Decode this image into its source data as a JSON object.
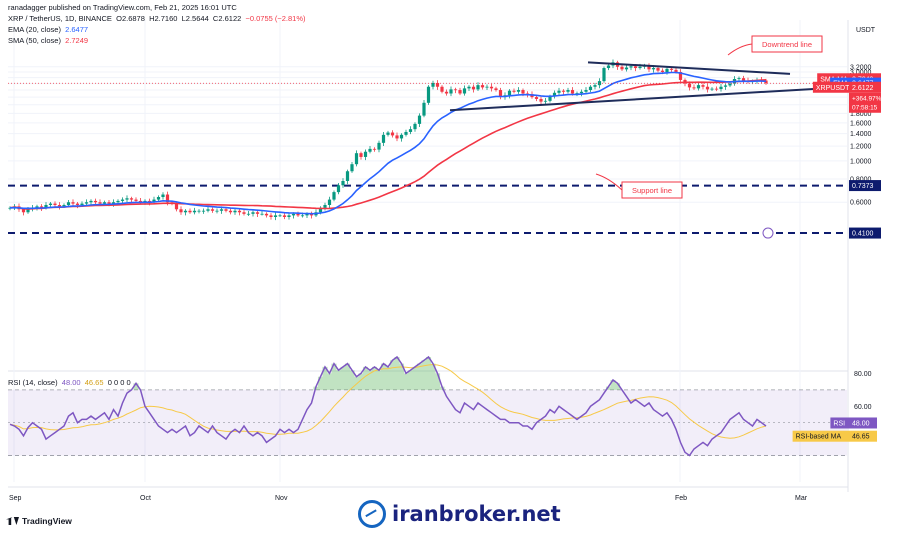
{
  "header": {
    "published_by": "ranadagger published on TradingView.com, Feb 21, 2025 16:01 UTC",
    "symbol_line": "XRP / TetherUS, 1D, BINANCE",
    "ohlc": {
      "o_label": "O",
      "o": "2.6878",
      "h_label": "H",
      "h": "2.7160",
      "l_label": "L",
      "l": "2.5644",
      "c_label": "C",
      "c": "2.6122",
      "change": "−0.0755 (−2.81%)"
    },
    "ema_line": {
      "label": "EMA (20, close)",
      "value": "2.6477"
    },
    "sma_line": {
      "label": "SMA (50, close)",
      "value": "2.7249"
    }
  },
  "footer": {
    "brand": "TradingView",
    "watermark": "iranbroker.net"
  },
  "colors": {
    "up": "#089981",
    "down": "#f23645",
    "ema": "#2962ff",
    "sma": "#f23645",
    "rsi_line": "#7e57c2",
    "rsi_ma": "#f7c948",
    "level_line": "#0d1b6e",
    "trend_line": "#1e2c5a"
  },
  "chart_data": [
    {
      "type": "candlestick",
      "title": "XRP / TetherUS, 1D, BINANCE",
      "currency_label": "USDT",
      "scale": "log",
      "ylim": [
        0.4,
        3.55
      ],
      "y_ticks": [
        "3.2000",
        "3.0000",
        "2.8000",
        "2.6000",
        "2.4000",
        "2.2000",
        "2.0000",
        "1.8000",
        "1.6000",
        "1.4000",
        "1.2000",
        "1.0000",
        "0.8000",
        "0.6000"
      ],
      "x_ticks": [
        "Sep",
        "Oct",
        "Nov",
        "Feb",
        "Mar"
      ],
      "close_approx": [
        0.56,
        0.57,
        0.55,
        0.53,
        0.55,
        0.56,
        0.57,
        0.56,
        0.58,
        0.59,
        0.58,
        0.57,
        0.58,
        0.6,
        0.59,
        0.58,
        0.59,
        0.6,
        0.61,
        0.6,
        0.59,
        0.6,
        0.59,
        0.6,
        0.61,
        0.62,
        0.63,
        0.62,
        0.61,
        0.6,
        0.61,
        0.6,
        0.62,
        0.64,
        0.66,
        0.6,
        0.59,
        0.55,
        0.53,
        0.54,
        0.53,
        0.54,
        0.54,
        0.54,
        0.55,
        0.54,
        0.54,
        0.55,
        0.54,
        0.53,
        0.54,
        0.53,
        0.52,
        0.52,
        0.53,
        0.52,
        0.52,
        0.51,
        0.5,
        0.51,
        0.51,
        0.5,
        0.51,
        0.52,
        0.51,
        0.51,
        0.52,
        0.51,
        0.53,
        0.56,
        0.58,
        0.62,
        0.68,
        0.74,
        0.78,
        0.88,
        0.96,
        1.1,
        1.05,
        1.12,
        1.16,
        1.15,
        1.25,
        1.38,
        1.42,
        1.37,
        1.32,
        1.38,
        1.43,
        1.48,
        1.58,
        1.75,
        2.05,
        2.5,
        2.62,
        2.5,
        2.35,
        2.3,
        2.42,
        2.4,
        2.3,
        2.45,
        2.5,
        2.42,
        2.55,
        2.48,
        2.5,
        2.45,
        2.4,
        2.2,
        2.25,
        2.38,
        2.35,
        2.4,
        2.3,
        2.28,
        2.2,
        2.15,
        2.08,
        2.1,
        2.22,
        2.32,
        2.38,
        2.35,
        2.4,
        2.3,
        2.31,
        2.35,
        2.4,
        2.5,
        2.55,
        2.68,
        3.15,
        3.25,
        3.38,
        3.2,
        3.1,
        3.17,
        3.22,
        3.15,
        3.2,
        3.25,
        3.1,
        3.15,
        3.05,
        3.0,
        3.12,
        3.08,
        3.0,
        2.72,
        2.6,
        2.48,
        2.45,
        2.55,
        2.5,
        2.42,
        2.44,
        2.43,
        2.5,
        2.54,
        2.6,
        2.75,
        2.78,
        2.7,
        2.65,
        2.68,
        2.72,
        2.7,
        2.61
      ],
      "ema20_last": 2.6477,
      "sma50_last": 2.7249,
      "price_labels": [
        {
          "tag": "SMA:MA",
          "value": "2.7249"
        },
        {
          "tag": "EMA",
          "value": "2.6477"
        },
        {
          "tag": "XRPUSDT",
          "value": "2.6122",
          "extra": [
            "+364.97%",
            "07:58:15"
          ]
        },
        {
          "tag": "",
          "value": "0.7373"
        },
        {
          "tag": "",
          "value": "0.4100"
        }
      ],
      "horizontal_levels": [
        0.7373,
        0.41
      ],
      "annotations": [
        "Downtrend line",
        "Support line"
      ]
    },
    {
      "type": "line",
      "title": "RSI (14, close)",
      "header_values": {
        "rsi": "48.00",
        "ma": "46.65",
        "extras": "0 0 0 0"
      },
      "ylim": [
        15,
        95
      ],
      "y_ticks": [
        "80.00",
        "60.00"
      ],
      "band": [
        30,
        70
      ],
      "series": [
        {
          "name": "RSI",
          "last": "48.00"
        },
        {
          "name": "RSI-based MA",
          "last": "46.65"
        }
      ],
      "rsi_approx": [
        49,
        48,
        46,
        42,
        47,
        50,
        48,
        46,
        40,
        42,
        44,
        46,
        48,
        54,
        56,
        50,
        52,
        52,
        54,
        52,
        54,
        56,
        52,
        58,
        54,
        62,
        68,
        70,
        74,
        70,
        60,
        56,
        52,
        48,
        46,
        44,
        46,
        44,
        46,
        48,
        42,
        44,
        48,
        46,
        44,
        48,
        44,
        42,
        40,
        44,
        46,
        44,
        48,
        44,
        42,
        44,
        42,
        38,
        40,
        42,
        46,
        44,
        46,
        44,
        46,
        52,
        58,
        62,
        72,
        78,
        84,
        80,
        86,
        82,
        84,
        86,
        82,
        78,
        80,
        84,
        82,
        84,
        82,
        86,
        84,
        88,
        90,
        86,
        80,
        82,
        84,
        86,
        88,
        90,
        86,
        80,
        72,
        66,
        62,
        58,
        56,
        62,
        60,
        58,
        62,
        60,
        58,
        56,
        54,
        52,
        52,
        50,
        50,
        50,
        48,
        48,
        46,
        50,
        52,
        54,
        58,
        56,
        60,
        58,
        56,
        54,
        52,
        54,
        56,
        60,
        62,
        64,
        68,
        72,
        76,
        74,
        70,
        66,
        62,
        64,
        62,
        60,
        62,
        58,
        56,
        54,
        56,
        52,
        46,
        38,
        32,
        30,
        34,
        36,
        38,
        36,
        40,
        42,
        44,
        48,
        52,
        54,
        56,
        52,
        50,
        48,
        52,
        50,
        48
      ]
    }
  ]
}
